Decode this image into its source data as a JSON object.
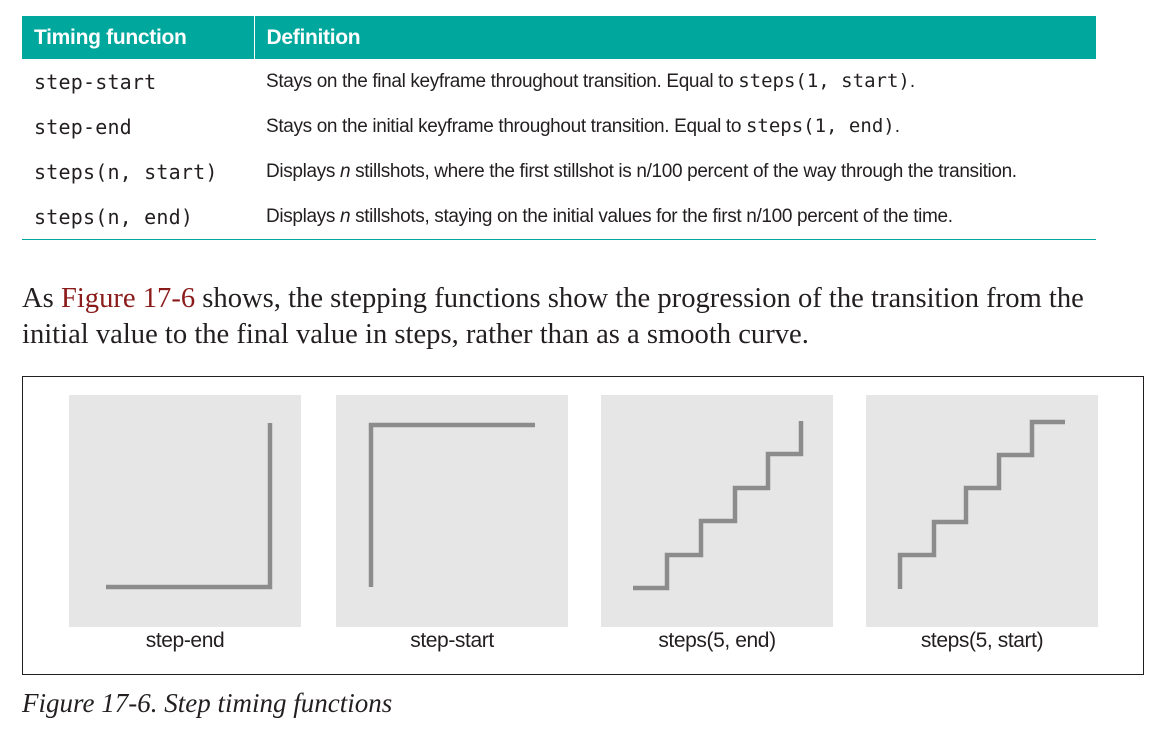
{
  "table": {
    "headers": {
      "name": "Timing function",
      "definition": "Definition"
    },
    "rows": [
      {
        "name": "step-start",
        "def_before": "Stays on the final keyframe throughout transition. Equal to ",
        "def_code": "steps(1, start)",
        "def_after": "."
      },
      {
        "name": "step-end",
        "def_before": "Stays on the initial keyframe throughout transition. Equal to ",
        "def_code": "steps(1, end)",
        "def_after": "."
      },
      {
        "name": "steps(n, start)",
        "def_before": "Displays ",
        "def_em": "n",
        "def_after": " stillshots, where the first stillshot is n/100 percent of the way through the transition."
      },
      {
        "name": "steps(n, end)",
        "def_before": "Displays ",
        "def_em": "n",
        "def_after": " stillshots, staying on the initial values for the first n/100 percent of the time."
      }
    ]
  },
  "paragraph": {
    "before": "As ",
    "xref": "Figure 17-6",
    "after": " shows, the stepping functions show the progression of the transition from the initial value to the final value in steps, rather than as a smooth curve."
  },
  "figure": {
    "caption": "Figure 17-6. Step timing functions",
    "panels": [
      {
        "label": "step-end",
        "steps": 1,
        "jump": "end"
      },
      {
        "label": "step-start",
        "steps": 1,
        "jump": "start"
      },
      {
        "label": "steps(5, end)",
        "steps": 5,
        "jump": "end"
      },
      {
        "label": "steps(5, start)",
        "steps": 5,
        "jump": "start"
      }
    ]
  },
  "colors": {
    "header_bg": "#00a79d",
    "xref": "#8b1a1a",
    "panel_bg": "#e6e6e6",
    "stroke": "#8c8c8c"
  }
}
